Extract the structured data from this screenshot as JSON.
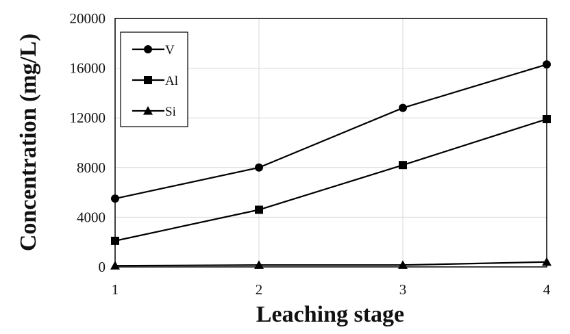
{
  "chart_data": {
    "type": "line",
    "title": "",
    "xlabel": "Leaching stage",
    "ylabel": "Concentration (mg/L)",
    "x": [
      1,
      2,
      3,
      4
    ],
    "xlim": [
      1,
      4
    ],
    "ylim": [
      0,
      20000
    ],
    "x_ticks": [
      "1",
      "2",
      "3",
      "4"
    ],
    "y_ticks": [
      "0",
      "4000",
      "8000",
      "12000",
      "16000",
      "20000"
    ],
    "grid": "vertical and horizontal, light gray",
    "legend": "top-left inside plot",
    "series": [
      {
        "name": "V",
        "marker": "circle",
        "color": "#000000",
        "values": [
          5500,
          8000,
          12800,
          16300
        ]
      },
      {
        "name": "Al",
        "marker": "square",
        "color": "#000000",
        "values": [
          2100,
          4600,
          8200,
          11900
        ]
      },
      {
        "name": "Si",
        "marker": "triangle",
        "color": "#000000",
        "values": [
          100,
          150,
          150,
          400
        ]
      }
    ]
  }
}
